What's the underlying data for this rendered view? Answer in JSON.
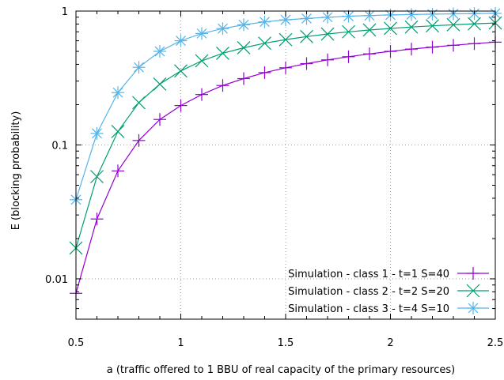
{
  "chart_data": {
    "type": "line",
    "title": "",
    "xlabel": "a (traffic offered to 1 BBU of real capacity of the primary resources)",
    "ylabel": "E (blocking probability)",
    "xlim": [
      0.5,
      2.5
    ],
    "ylim": [
      0.005,
      1.0
    ],
    "yscale": "log",
    "grid": true,
    "legend_position": "bottom-right",
    "xticks": [
      0.5,
      1,
      1.5,
      2,
      2.5
    ],
    "xtick_labels": [
      "0.5",
      "1",
      "1.5",
      "2",
      "2.5"
    ],
    "yticks": [
      0.01,
      0.1,
      1
    ],
    "ytick_labels": [
      "0.01",
      "0.1",
      "1"
    ],
    "x": [
      0.5,
      0.6,
      0.7,
      0.8,
      0.9,
      1.0,
      1.1,
      1.2,
      1.3,
      1.4,
      1.5,
      1.6,
      1.7,
      1.8,
      1.9,
      2.0,
      2.1,
      2.2,
      2.3,
      2.4,
      2.5
    ],
    "series": [
      {
        "name": "Simulation - class 1 - t=1 S=40",
        "color": "#9400d3",
        "marker": "plus",
        "values": [
          0.0078,
          0.028,
          0.064,
          0.108,
          0.155,
          0.197,
          0.238,
          0.278,
          0.313,
          0.347,
          0.377,
          0.405,
          0.432,
          0.456,
          0.479,
          0.5,
          0.52,
          0.538,
          0.555,
          0.571,
          0.586
        ]
      },
      {
        "name": "Simulation - class 2 - t=2 S=20",
        "color": "#009e73",
        "marker": "cross",
        "values": [
          0.017,
          0.058,
          0.126,
          0.207,
          0.285,
          0.357,
          0.425,
          0.484,
          0.532,
          0.575,
          0.612,
          0.645,
          0.674,
          0.7,
          0.722,
          0.742,
          0.76,
          0.776,
          0.79,
          0.803,
          0.815
        ]
      },
      {
        "name": "Simulation - class 3 - t=4 S=10",
        "color": "#56b4e9",
        "marker": "star",
        "values": [
          0.039,
          0.122,
          0.246,
          0.38,
          0.5,
          0.6,
          0.68,
          0.74,
          0.79,
          0.83,
          0.86,
          0.88,
          0.9,
          0.915,
          0.925,
          0.935,
          0.942,
          0.948,
          0.953,
          0.957,
          0.961
        ]
      }
    ]
  }
}
